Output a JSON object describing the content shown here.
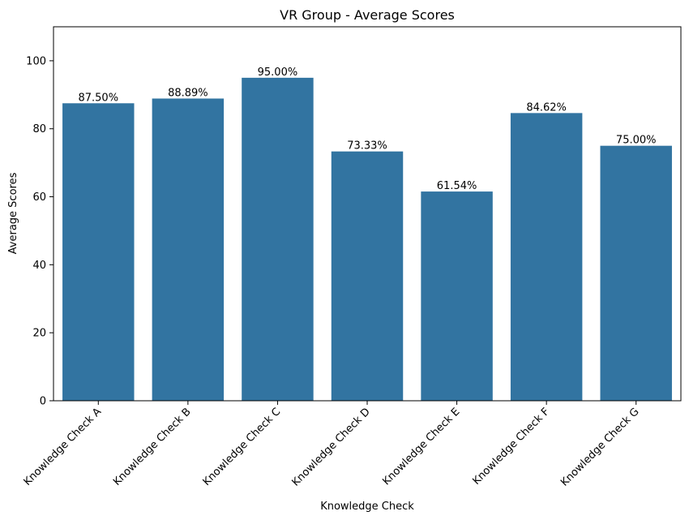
{
  "chart_data": {
    "type": "bar",
    "title": "VR Group - Average Scores",
    "xlabel": "Knowledge Check",
    "ylabel": "Average Scores",
    "categories": [
      "Knowledge Check A",
      "Knowledge Check B",
      "Knowledge Check C",
      "Knowledge Check D",
      "Knowledge Check E",
      "Knowledge Check F",
      "Knowledge Check G"
    ],
    "values": [
      87.5,
      88.89,
      95.0,
      73.33,
      61.54,
      84.62,
      75.0
    ],
    "data_labels": [
      "87.50%",
      "88.89%",
      "95.00%",
      "73.33%",
      "61.54%",
      "84.62%",
      "75.00%"
    ],
    "ylim": [
      0,
      110
    ],
    "yticks": [
      0,
      20,
      40,
      60,
      80,
      100
    ],
    "ytick_labels": [
      "0",
      "20",
      "40",
      "60",
      "80",
      "100"
    ],
    "x_tick_rotation_deg": 45,
    "grid": false,
    "legend": "none",
    "bar_color": "#3274a1"
  }
}
